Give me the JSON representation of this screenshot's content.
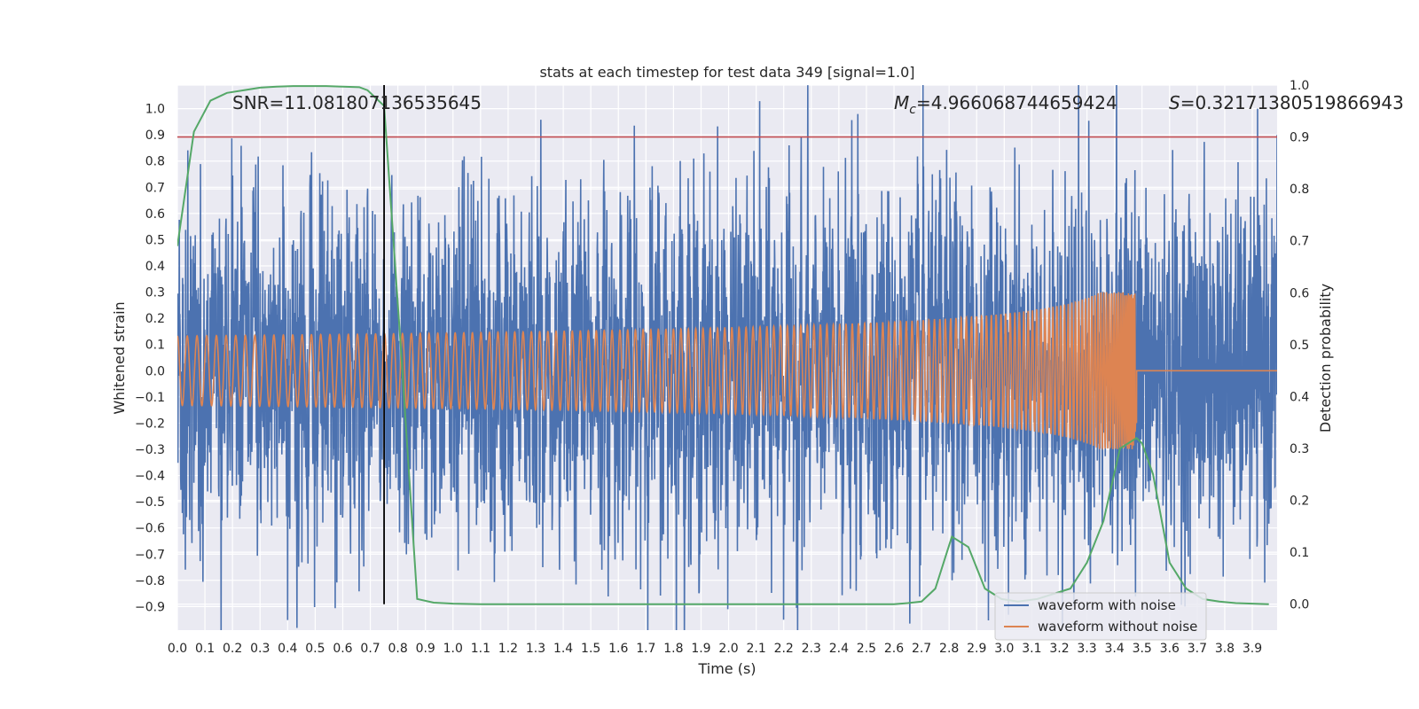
{
  "chart_data": {
    "type": "line",
    "title": "stats at each timestep for test data 349 [signal=1.0]",
    "xlabel": "Time (s)",
    "ylabel": "Whitened strain",
    "ylabel_right": "Detection probability",
    "xlim": [
      0.0,
      3.99
    ],
    "ylim": [
      -0.99,
      1.09
    ],
    "ylim_right": [
      -0.05,
      1.0
    ],
    "x_ticks": [
      "0.0",
      "0.1",
      "0.2",
      "0.3",
      "0.4",
      "0.5",
      "0.6",
      "0.7",
      "0.8",
      "0.9",
      "1.0",
      "1.1",
      "1.2",
      "1.3",
      "1.4",
      "1.5",
      "1.6",
      "1.7",
      "1.8",
      "1.9",
      "2.0",
      "2.1",
      "2.2",
      "2.3",
      "2.4",
      "2.5",
      "2.6",
      "2.7",
      "2.8",
      "2.9",
      "3.0",
      "3.1",
      "3.2",
      "3.3",
      "3.4",
      "3.5",
      "3.6",
      "3.7",
      "3.8",
      "3.9"
    ],
    "y_ticks": [
      "1.0",
      "0.9",
      "0.8",
      "0.7",
      "0.6",
      "0.5",
      "0.4",
      "0.3",
      "0.2",
      "0.1",
      "0.0",
      "−0.1",
      "−0.2",
      "−0.3",
      "−0.4",
      "−0.5",
      "−0.6",
      "−0.7",
      "−0.8",
      "−0.9"
    ],
    "y_ticks_right": [
      "1.0",
      "0.9",
      "0.8",
      "0.7",
      "0.6",
      "0.5",
      "0.4",
      "0.3",
      "0.2",
      "0.1",
      "0.0"
    ],
    "annotations": {
      "snr": "SNR=11.081807136535645",
      "mc_symbol": "M",
      "mc_sub": "c",
      "mc_value": "=4.966068744659424",
      "s_symbol": "S",
      "s_value": "=0.32171380519866943"
    },
    "threshold_right": 0.9,
    "vertical_marker_x": 0.75,
    "colors": {
      "noisy": "#4c72b0",
      "clean": "#dd8452",
      "probability": "#55a868",
      "threshold": "#c44e52",
      "marker": "#000000",
      "background": "#eaeaf2"
    },
    "series": [
      {
        "name": "waveform with noise",
        "role": "noisy",
        "amplitude": 0.32
      },
      {
        "name": "waveform without noise",
        "role": "clean",
        "merger_time": 3.48,
        "peak_amplitude": 0.3
      },
      {
        "role": "probability",
        "x": [
          0.0,
          0.06,
          0.12,
          0.18,
          0.24,
          0.3,
          0.36,
          0.42,
          0.48,
          0.54,
          0.6,
          0.66,
          0.69,
          0.75,
          0.81,
          0.87,
          0.93,
          1.0,
          1.1,
          1.5,
          2.0,
          2.5,
          2.6,
          2.65,
          2.7,
          2.75,
          2.81,
          2.87,
          2.93,
          2.99,
          3.05,
          3.12,
          3.18,
          3.24,
          3.3,
          3.36,
          3.42,
          3.48,
          3.5,
          3.54,
          3.6,
          3.66,
          3.72,
          3.78,
          3.84,
          3.9,
          3.96
        ],
        "y": [
          0.69,
          0.91,
          0.97,
          0.985,
          0.99,
          0.995,
          0.997,
          0.998,
          0.998,
          0.998,
          0.997,
          0.996,
          0.99,
          0.96,
          0.5,
          0.01,
          0.003,
          0.001,
          0.0,
          0.0,
          0.0,
          0.0,
          0.0,
          0.002,
          0.005,
          0.03,
          0.13,
          0.11,
          0.03,
          0.01,
          0.005,
          0.01,
          0.02,
          0.03,
          0.08,
          0.16,
          0.3,
          0.32,
          0.31,
          0.25,
          0.08,
          0.03,
          0.01,
          0.005,
          0.002,
          0.001,
          0.0
        ]
      }
    ],
    "legend_placement": "lower-right",
    "grid": true
  }
}
